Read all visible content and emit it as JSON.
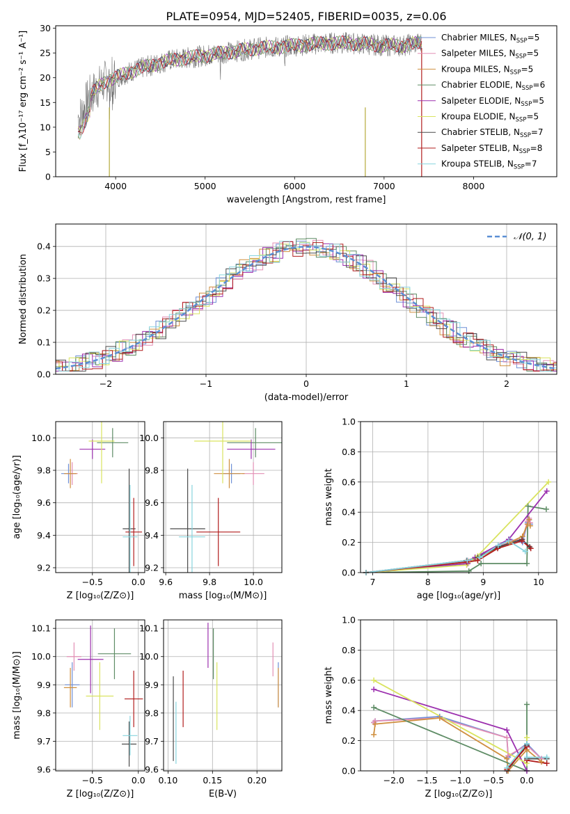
{
  "figure": {
    "title": "PLATE=0954, MJD=52405, FIBERID=0035, z=0.06"
  },
  "series_colors": [
    "#6f8fd6",
    "#e38fb5",
    "#cf8f3f",
    "#5e8c65",
    "#9b2fae",
    "#d9e35f",
    "#4a4a4a",
    "#b11d1d",
    "#87d4de"
  ],
  "chart_data": [
    {
      "id": "spectrum",
      "type": "line",
      "xlabel": "wavelength [Angstrom, rest frame]",
      "ylabel": "Flux [f_λ10⁻¹⁷ erg cm⁻² s⁻¹ A⁻¹]",
      "xlim": [
        3330,
        8930
      ],
      "ylim": [
        0,
        30.5
      ],
      "xticks": [
        4000,
        5000,
        6000,
        7000,
        8000
      ],
      "yticks": [
        0,
        5,
        10,
        15,
        20,
        25,
        30
      ],
      "grid": false,
      "legend_position": "top-right",
      "continuum": {
        "x": [
          3600,
          3700,
          3800,
          3900,
          4000,
          4200,
          4400,
          4600,
          4800,
          5000,
          5200,
          5400,
          5600,
          5800,
          6000,
          6200,
          6400,
          6600,
          6800,
          7000,
          7200,
          7400
        ],
        "y": [
          12,
          16,
          18,
          19.5,
          20,
          21.5,
          22.5,
          23.5,
          24,
          24.5,
          25,
          25.5,
          26,
          26.2,
          26.5,
          26.8,
          27,
          27,
          26.8,
          26.5,
          26.5,
          27
        ]
      },
      "data_range": [
        3580,
        7420
      ],
      "model_range": [
        3580,
        7420
      ],
      "series": [
        {
          "name": "Chabrier MILES, N_SSP=5"
        },
        {
          "name": "Salpeter MILES, N_SSP=5"
        },
        {
          "name": "Kroupa MILES, N_SSP=5"
        },
        {
          "name": "Chabrier ELODIE, N_SSP=6"
        },
        {
          "name": "Salpeter ELODIE, N_SSP=5"
        },
        {
          "name": "Kroupa ELODIE, N_SSP=5"
        },
        {
          "name": "Chabrier STELIB, N_SSP=7"
        },
        {
          "name": "Salpeter STELIB, N_SSP=8"
        },
        {
          "name": "Kroupa STELIB, N_SSP=7"
        }
      ],
      "legend_labels": [
        "Chabrier MILES, N",
        "Salpeter MILES, N",
        "Kroupa MILES, N",
        "Chabrier ELODIE, N",
        "Salpeter ELODIE, N",
        "Kroupa ELODIE, N",
        "Chabrier STELIB, N",
        "Salpeter STELIB, N",
        "Kroupa STELIB, N"
      ],
      "legend_subscript": "SSP",
      "legend_counts": [
        "=5",
        "=5",
        "=5",
        "=6",
        "=5",
        "=5",
        "=7",
        "=8",
        "=7"
      ],
      "spikes": [
        3930,
        6790,
        7420
      ]
    },
    {
      "id": "residuals",
      "type": "histogram",
      "xlabel": "(data-model)/error",
      "ylabel": "Normed distribution",
      "xlim": [
        -2.5,
        2.5
      ],
      "ylim": [
        0,
        0.47
      ],
      "xticks": [
        -2,
        -1,
        0,
        1,
        2
      ],
      "yticks": [
        0.0,
        0.1,
        0.2,
        0.3,
        0.4
      ],
      "grid": true,
      "legend_label": "𝒩(0, 1)",
      "legend_position": "top-right",
      "bin_width": 0.1,
      "reference_curve": "standard normal"
    },
    {
      "id": "age_vs_Z",
      "type": "scatter",
      "xlabel": "Z [log₁₀(Z/Z⊙)]",
      "ylabel": "age  [log₁₀(age/yr)]",
      "xlim": [
        -0.9,
        0.07
      ],
      "ylim": [
        9.17,
        10.1
      ],
      "xticks": [
        -0.5,
        0.0
      ],
      "yticks": [
        9.2,
        9.4,
        9.6,
        9.8,
        10.0
      ],
      "grid": true,
      "points": [
        {
          "x": -0.76,
          "y": 9.78,
          "xerr": 0.08,
          "yerr": 0.06
        },
        {
          "x": -0.72,
          "y": 9.78,
          "xerr": 0.06,
          "yerr": 0.07
        },
        {
          "x": -0.74,
          "y": 9.78,
          "xerr": 0.07,
          "yerr": 0.09
        },
        {
          "x": -0.28,
          "y": 9.97,
          "xerr": 0.17,
          "yerr": 0.09
        },
        {
          "x": -0.5,
          "y": 9.93,
          "xerr": 0.14,
          "yerr": 0.06
        },
        {
          "x": -0.4,
          "y": 9.98,
          "xerr": 0.14,
          "yerr": 0.26
        },
        {
          "x": -0.1,
          "y": 9.44,
          "xerr": 0.07,
          "yerr": 0.37
        },
        {
          "x": -0.05,
          "y": 9.42,
          "xerr": 0.09,
          "yerr": 0.21
        },
        {
          "x": -0.09,
          "y": 9.39,
          "xerr": 0.08,
          "yerr": 0.32
        }
      ]
    },
    {
      "id": "age_vs_mass",
      "type": "scatter",
      "xlabel": "mass [log₁₀(M/M⊙)]",
      "ylabel": "",
      "xlim": [
        9.59,
        10.13
      ],
      "ylim": [
        9.17,
        10.1
      ],
      "xticks": [
        9.6,
        9.8,
        10.0
      ],
      "yticks": [
        9.2,
        9.4,
        9.6,
        9.8,
        10.0
      ],
      "grid": true,
      "points": [
        {
          "x": 9.9,
          "y": 9.78,
          "xerr": 0.04,
          "yerr": 0.06
        },
        {
          "x": 10.0,
          "y": 9.78,
          "xerr": 0.05,
          "yerr": 0.07
        },
        {
          "x": 9.89,
          "y": 9.78,
          "xerr": 0.07,
          "yerr": 0.09
        },
        {
          "x": 10.01,
          "y": 9.97,
          "xerr": 0.13,
          "yerr": 0.09
        },
        {
          "x": 9.99,
          "y": 9.93,
          "xerr": 0.11,
          "yerr": 0.06
        },
        {
          "x": 9.86,
          "y": 9.98,
          "xerr": 0.13,
          "yerr": 0.26
        },
        {
          "x": 9.7,
          "y": 9.44,
          "xerr": 0.08,
          "yerr": 0.37
        },
        {
          "x": 9.84,
          "y": 9.42,
          "xerr": 0.1,
          "yerr": 0.21
        },
        {
          "x": 9.72,
          "y": 9.39,
          "xerr": 0.06,
          "yerr": 0.32
        }
      ]
    },
    {
      "id": "massweight_vs_age",
      "type": "line",
      "xlabel": "age  [log₁₀(age/yr)]",
      "ylabel": "mass weight",
      "xlim": [
        6.78,
        10.33
      ],
      "ylim": [
        0,
        1.0
      ],
      "xticks": [
        7,
        8,
        9,
        10
      ],
      "yticks": [
        0.0,
        0.2,
        0.4,
        0.6,
        0.8,
        1.0
      ],
      "grid": true,
      "series": [
        {
          "x": [
            6.88,
            8.72,
            8.86,
            9.48,
            9.71,
            9.8,
            9.83,
            9.85
          ],
          "y": [
            0.0,
            0.07,
            0.09,
            0.22,
            0.2,
            0.33,
            0.35,
            0.32
          ]
        },
        {
          "x": [
            6.88,
            8.72,
            8.86,
            9.48,
            9.71,
            9.8,
            9.83,
            9.85
          ],
          "y": [
            0.0,
            0.08,
            0.1,
            0.21,
            0.22,
            0.34,
            0.36,
            0.33
          ]
        },
        {
          "x": [
            6.88,
            8.72,
            8.86,
            9.48,
            9.71,
            9.8,
            9.83,
            9.85
          ],
          "y": [
            0.0,
            0.07,
            0.09,
            0.2,
            0.24,
            0.32,
            0.35,
            0.31
          ]
        },
        {
          "x": [
            6.88,
            8.74,
            8.96,
            9.79,
            9.81,
            10.14
          ],
          "y": [
            0.0,
            0.01,
            0.06,
            0.06,
            0.44,
            0.42
          ]
        },
        {
          "x": [
            6.88,
            8.72,
            8.85,
            9.46,
            10.15
          ],
          "y": [
            0.0,
            0.06,
            0.1,
            0.22,
            0.54
          ]
        },
        {
          "x": [
            6.88,
            8.7,
            8.9,
            10.18
          ],
          "y": [
            0.0,
            0.05,
            0.11,
            0.6
          ]
        },
        {
          "x": [
            6.88,
            8.7,
            8.9,
            9.27,
            9.7,
            9.84
          ],
          "y": [
            0.0,
            0.08,
            0.1,
            0.17,
            0.22,
            0.17
          ]
        },
        {
          "x": [
            6.88,
            8.7,
            8.9,
            9.26,
            9.7,
            9.86
          ],
          "y": [
            0.0,
            0.07,
            0.08,
            0.16,
            0.21,
            0.16
          ]
        },
        {
          "x": [
            6.88,
            8.71,
            8.94,
            9.27,
            9.46,
            9.76
          ],
          "y": [
            0.0,
            0.08,
            0.1,
            0.18,
            0.21,
            0.14
          ]
        }
      ]
    },
    {
      "id": "mass_vs_Z",
      "type": "scatter",
      "xlabel": "Z [log₁₀(Z/Z⊙)]",
      "ylabel": "mass [log₁₀(M/M⊙)]",
      "xlim": [
        -0.9,
        0.07
      ],
      "ylim": [
        9.595,
        10.13
      ],
      "xticks": [
        -0.5,
        0.0
      ],
      "yticks": [
        9.6,
        9.7,
        9.8,
        9.9,
        10.0,
        10.1
      ],
      "grid": true,
      "points": [
        {
          "x": -0.72,
          "y": 9.9,
          "xerr": 0.08,
          "yerr": 0.08
        },
        {
          "x": -0.7,
          "y": 10.0,
          "xerr": 0.08,
          "yerr": 0.05
        },
        {
          "x": -0.74,
          "y": 9.89,
          "xerr": 0.07,
          "yerr": 0.07
        },
        {
          "x": -0.26,
          "y": 10.01,
          "xerr": 0.18,
          "yerr": 0.09
        },
        {
          "x": -0.52,
          "y": 9.99,
          "xerr": 0.14,
          "yerr": 0.12
        },
        {
          "x": -0.42,
          "y": 9.86,
          "xerr": 0.15,
          "yerr": 0.12
        },
        {
          "x": -0.1,
          "y": 9.69,
          "xerr": 0.08,
          "yerr": 0.08
        },
        {
          "x": -0.05,
          "y": 9.85,
          "xerr": 0.1,
          "yerr": 0.1
        },
        {
          "x": -0.09,
          "y": 9.72,
          "xerr": 0.08,
          "yerr": 0.07
        }
      ]
    },
    {
      "id": "mass_vs_ebv",
      "type": "scatter",
      "xlabel": "E(B-V)",
      "ylabel": "",
      "xlim": [
        0.095,
        0.228
      ],
      "ylim": [
        9.595,
        10.13
      ],
      "xticks": [
        0.1,
        0.15,
        0.2
      ],
      "yticks": [
        9.6,
        9.7,
        9.8,
        9.9,
        10.0,
        10.1
      ],
      "grid": true,
      "points": [
        {
          "x": 0.224,
          "y": 9.9,
          "yerr": 0.08
        },
        {
          "x": 0.218,
          "y": 9.99,
          "yerr": 0.06
        },
        {
          "x": 0.224,
          "y": 9.89,
          "yerr": 0.07
        },
        {
          "x": 0.151,
          "y": 10.01,
          "yerr": 0.09
        },
        {
          "x": 0.145,
          "y": 10.04,
          "yerr": 0.08
        },
        {
          "x": 0.155,
          "y": 9.86,
          "yerr": 0.12
        },
        {
          "x": 0.106,
          "y": 9.78,
          "yerr": 0.15
        },
        {
          "x": 0.117,
          "y": 9.85,
          "yerr": 0.1
        },
        {
          "x": 0.109,
          "y": 9.73,
          "yerr": 0.11
        }
      ]
    },
    {
      "id": "massweight_vs_Z",
      "type": "line",
      "xlabel": "Z [log₁₀(Z/Z⊙)]",
      "ylabel": "mass weight",
      "xlim": [
        -2.5,
        0.45
      ],
      "ylim": [
        0,
        1.0
      ],
      "xticks": [
        -2.0,
        -1.5,
        -1.0,
        -0.5,
        0.0
      ],
      "yticks": [
        0.0,
        0.2,
        0.4,
        0.6,
        0.8,
        1.0
      ],
      "grid": true,
      "series": [
        {
          "x": [
            -2.3,
            -2.28,
            -1.31,
            -0.3,
            -0.28,
            0.0,
            0.22
          ],
          "y": [
            0.32,
            0.33,
            0.36,
            0.22,
            0.09,
            0.18,
            0.08
          ]
        },
        {
          "x": [
            -2.3,
            -2.28,
            -1.31,
            -0.3,
            -0.28,
            0.0,
            0.22
          ],
          "y": [
            0.32,
            0.33,
            0.35,
            0.22,
            0.1,
            0.17,
            0.08
          ]
        },
        {
          "x": [
            -2.3,
            -2.28,
            -1.31,
            -0.3,
            -0.28,
            0.0,
            0.22
          ],
          "y": [
            0.24,
            0.31,
            0.35,
            0.08,
            0.0,
            0.14,
            0.06
          ]
        },
        {
          "x": [
            -2.3,
            0.0,
            0.0
          ],
          "y": [
            0.42,
            0.0,
            0.44
          ]
        },
        {
          "x": [
            -2.3,
            -0.3,
            0.0
          ],
          "y": [
            0.54,
            0.27,
            0.0
          ]
        },
        {
          "x": [
            -2.3,
            0.0,
            0.0
          ],
          "y": [
            0.6,
            0.05,
            0.22
          ]
        },
        {
          "x": [
            -0.3,
            0.0,
            0.0,
            0.3
          ],
          "y": [
            0.0,
            0.17,
            0.08,
            0.08
          ]
        },
        {
          "x": [
            -0.3,
            0.0,
            0.0,
            0.3
          ],
          "y": [
            0.01,
            0.16,
            0.07,
            0.05
          ]
        },
        {
          "x": [
            -0.3,
            0.0,
            0.0,
            0.3
          ],
          "y": [
            0.02,
            0.18,
            0.09,
            0.09
          ]
        }
      ]
    }
  ]
}
